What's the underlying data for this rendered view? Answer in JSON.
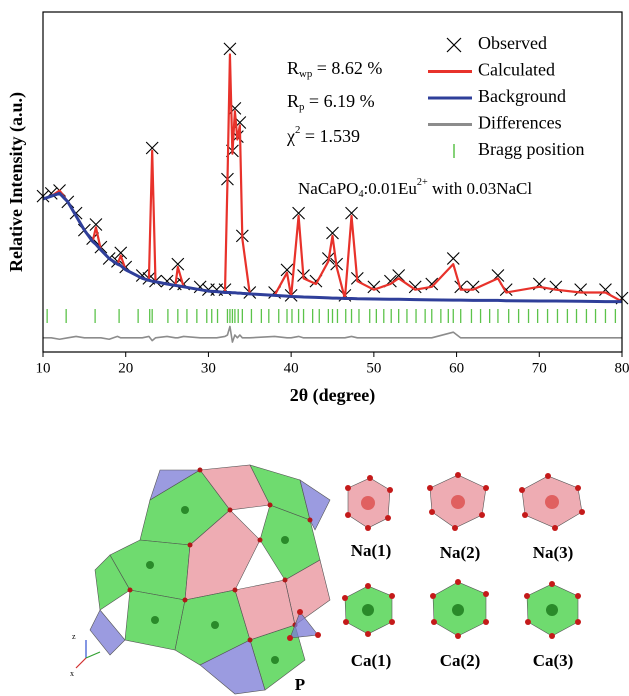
{
  "chart_data": {
    "type": "line",
    "xlabel": "2θ (degree)",
    "ylabel": "Relative Intensity (a.u.)",
    "xlim": [
      10,
      80
    ],
    "xticks": [
      10,
      20,
      30,
      40,
      50,
      60,
      70,
      80
    ],
    "ylim": [
      0,
      120
    ],
    "legend": "upper right",
    "x": [
      10,
      11,
      12,
      13,
      14,
      15,
      16,
      16.4,
      17,
      18,
      19,
      19.4,
      20,
      22,
      22.8,
      23.2,
      23.6,
      25,
      26,
      26.3,
      27,
      29,
      30,
      31,
      32,
      32.3,
      32.6,
      32.9,
      33.2,
      33.5,
      33.8,
      34.1,
      35,
      38,
      39.5,
      40,
      40.9,
      41.5,
      43,
      44.5,
      45,
      45.5,
      46.5,
      47.3,
      48,
      50,
      52,
      53,
      55,
      57,
      59.6,
      60.5,
      62,
      65,
      66,
      70,
      72,
      75,
      78,
      80
    ],
    "series": [
      {
        "name": "Observed",
        "color": "#000000",
        "marker": "x",
        "values": [
          55,
          56,
          57,
          53,
          49,
          43,
          40,
          45,
          37,
          33,
          32,
          35,
          30,
          27,
          26,
          72,
          25,
          25,
          24,
          31,
          24,
          23,
          22,
          22,
          22,
          61,
          107,
          71,
          86,
          76,
          81,
          41,
          21,
          21,
          29,
          20,
          49,
          27,
          25,
          33,
          42,
          31,
          20,
          49,
          26,
          23,
          25,
          27,
          23,
          24,
          33,
          23,
          23,
          27,
          22,
          24,
          23,
          22,
          22,
          19
        ]
      },
      {
        "name": "Calculated",
        "color": "#e8322b",
        "marker": "line",
        "values": [
          54,
          55,
          57,
          53,
          48,
          43,
          39,
          44,
          36,
          33,
          31,
          34,
          29,
          26,
          25.3,
          71,
          24.8,
          24,
          23.5,
          30,
          23,
          22,
          21.5,
          21.3,
          21,
          60,
          105,
          70,
          85,
          75,
          80,
          40,
          20.5,
          20,
          28,
          19.6,
          48,
          26,
          24,
          32,
          41,
          30,
          18.9,
          48,
          25,
          22,
          24,
          26,
          22,
          23,
          31,
          22,
          22,
          26,
          21,
          23,
          22,
          21,
          21,
          17.8
        ]
      },
      {
        "name": "Background",
        "color": "#2f3f9a",
        "marker": "line",
        "values": [
          54,
          55,
          56,
          53,
          48,
          43,
          39,
          38,
          36,
          33,
          31,
          30.5,
          29,
          26,
          25.3,
          25,
          24.8,
          24,
          23.5,
          23.4,
          23,
          22,
          21.5,
          21.3,
          21,
          21,
          21,
          20.9,
          20.9,
          20.8,
          20.8,
          20.7,
          20.5,
          20,
          19.7,
          19.6,
          19.5,
          19.4,
          19.3,
          19.1,
          19,
          19,
          18.9,
          18.9,
          18.8,
          18.7,
          18.6,
          18.6,
          18.5,
          18.4,
          18.3,
          18.3,
          18.2,
          18.2,
          18.1,
          18,
          18,
          17.9,
          17.8,
          17.8
        ]
      },
      {
        "name": "Differences",
        "color": "#8c8c8c",
        "marker": "line",
        "values": [
          5,
          5,
          4.5,
          5,
          5.5,
          5,
          5,
          5,
          5,
          4.5,
          5.5,
          5,
          5,
          5,
          5.5,
          4,
          5,
          5.5,
          5,
          5,
          5.5,
          5,
          5,
          5,
          5.5,
          6,
          9,
          3.5,
          6,
          5,
          6,
          5,
          5,
          5.5,
          5,
          5,
          5.5,
          5,
          5,
          5,
          5,
          5,
          5,
          5.5,
          5,
          5,
          5,
          5,
          5,
          5,
          7,
          5,
          5,
          5,
          5,
          5,
          5,
          5,
          5,
          5
        ]
      },
      {
        "name": "Bragg position",
        "color": "#5cc34a",
        "marker": "tick",
        "x": [
          10.5,
          12.8,
          16.3,
          19.2,
          21.5,
          22.9,
          23.2,
          25.1,
          26.3,
          27.4,
          28.6,
          29.8,
          30.4,
          31.1,
          32.3,
          32.6,
          32.9,
          33.2,
          33.6,
          34.1,
          35.2,
          36.4,
          37.3,
          38.5,
          39.5,
          40.1,
          40.9,
          41.5,
          42.6,
          43.4,
          44.5,
          45.0,
          45.6,
          46.6,
          47.3,
          48.2,
          49.5,
          50.3,
          51.2,
          52.1,
          53.0,
          54.0,
          55.1,
          56.2,
          57.0,
          58.1,
          59.0,
          59.6,
          60.5,
          61.8,
          62.9,
          64.0,
          65.0,
          66.3,
          67.5,
          68.7,
          69.8,
          71.0,
          72.2,
          73.4,
          74.5,
          75.7,
          76.8,
          78.0,
          79.2
        ]
      }
    ],
    "annotations": [
      {
        "parts": [
          {
            "text": "R"
          },
          {
            "text": "wp",
            "sub": true
          },
          {
            "text": " = 8.62 %"
          }
        ]
      },
      {
        "parts": [
          {
            "text": "R"
          },
          {
            "text": "p",
            "sub": true
          },
          {
            "text": " = 6.19 %"
          }
        ]
      },
      {
        "parts": [
          {
            "text": "χ"
          },
          {
            "text": "2",
            "sup": true
          },
          {
            "text": " = 1.539"
          }
        ]
      },
      {
        "parts": [
          {
            "text": "NaCaPO"
          },
          {
            "text": "4",
            "sub": true
          },
          {
            "text": ":0.01Eu"
          },
          {
            "text": "2+",
            "sup": true
          },
          {
            "text": " with 0.03NaCl"
          }
        ]
      }
    ]
  },
  "structure": {
    "labels": [
      "Na(1)",
      "Na(2)",
      "Na(3)",
      "Ca(1)",
      "Ca(2)",
      "Ca(3)",
      "P"
    ],
    "axes": [
      "z",
      "x"
    ]
  }
}
